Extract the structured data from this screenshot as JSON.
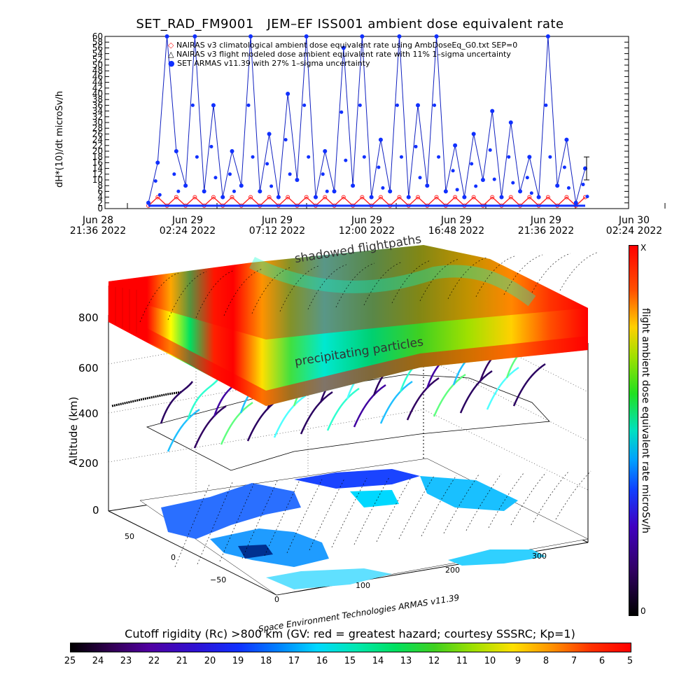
{
  "title": "SET_RAD_FM9001   JEM–EF ISS001 ambient dose equivalent rate",
  "top_chart": {
    "ylabel": "dH*(10)/dt microSv/h",
    "legend": [
      {
        "text": "NAIRAS v3 climatological ambient dose equivalent rate using AmbDoseEq_G0.txt SEP=0",
        "marker": "◇",
        "color": "#ff2a2a"
      },
      {
        "text": "NAIRAS v3 flight modeled dose ambient equivalent rate with 11% 1–sigma uncertainty",
        "marker": "△",
        "color": "#000000"
      },
      {
        "text": "SET ARMAS v11.39 with 27% 1–sigma uncertainty",
        "marker": "●",
        "color": "#1030ff"
      }
    ],
    "x_ticks": [
      {
        "line1": "Jun 28",
        "line2": "21:36 2022"
      },
      {
        "line1": "Jun 29",
        "line2": "02:24 2022"
      },
      {
        "line1": "Jun 29",
        "line2": "07:12 2022"
      },
      {
        "line1": "Jun 29",
        "line2": "12:00 2022"
      },
      {
        "line1": "Jun 29",
        "line2": "16:48 2022"
      },
      {
        "line1": "Jun 29",
        "line2": "21:36 2022"
      },
      {
        "line1": "Jun 30",
        "line2": "02:24 2022"
      }
    ],
    "y_ticks": [
      "0",
      "2",
      "4",
      "6",
      "8",
      "10",
      "12",
      "14",
      "16",
      "18",
      "20",
      "22",
      "24",
      "26",
      "28",
      "30",
      "32",
      "34",
      "36",
      "38",
      "40",
      "42",
      "44",
      "46",
      "48",
      "50",
      "52",
      "54",
      "56",
      "58",
      "60"
    ]
  },
  "chart_data": {
    "type": "line",
    "title": "SET_RAD_FM9001   JEM–EF ISS001 ambient dose equivalent rate",
    "xlabel": "",
    "ylabel": "dH*(10)/dt microSv/h",
    "x": [
      "Jun 29 00:00",
      "Jun 29 00:30",
      "Jun 29 01:00",
      "Jun 29 01:30",
      "Jun 29 02:00",
      "Jun 29 02:30",
      "Jun 29 03:00",
      "Jun 29 03:30",
      "Jun 29 04:00",
      "Jun 29 04:30",
      "Jun 29 05:00",
      "Jun 29 05:30",
      "Jun 29 06:00",
      "Jun 29 06:30",
      "Jun 29 07:00",
      "Jun 29 07:30",
      "Jun 29 08:00",
      "Jun 29 08:30",
      "Jun 29 09:00",
      "Jun 29 09:30",
      "Jun 29 10:00",
      "Jun 29 10:30",
      "Jun 29 11:00",
      "Jun 29 11:30",
      "Jun 29 12:00",
      "Jun 29 12:30",
      "Jun 29 13:00",
      "Jun 29 13:30",
      "Jun 29 14:00",
      "Jun 29 14:30",
      "Jun 29 15:00",
      "Jun 29 15:30",
      "Jun 29 16:00",
      "Jun 29 16:30",
      "Jun 29 17:00",
      "Jun 29 17:30",
      "Jun 29 18:00",
      "Jun 29 18:30",
      "Jun 29 19:00",
      "Jun 29 19:30",
      "Jun 29 20:00",
      "Jun 29 20:30",
      "Jun 29 21:00",
      "Jun 29 21:30",
      "Jun 29 22:00",
      "Jun 29 22:30",
      "Jun 29 23:00",
      "Jun 29 23:30"
    ],
    "series": [
      {
        "name": "SET ARMAS v11.39 with 27% 1–sigma uncertainty",
        "values": [
          2,
          16,
          60,
          20,
          8,
          60,
          6,
          36,
          4,
          20,
          8,
          60,
          6,
          26,
          4,
          40,
          10,
          60,
          4,
          20,
          6,
          56,
          8,
          60,
          4,
          24,
          6,
          60,
          4,
          36,
          8,
          60,
          6,
          22,
          4,
          26,
          10,
          34,
          4,
          30,
          6,
          18,
          4,
          60,
          8,
          24,
          2,
          14
        ]
      },
      {
        "name": "NAIRAS v3 climatological ambient dose equivalent rate using AmbDoseEq_G0.txt SEP=0",
        "values": [
          1,
          4,
          1,
          4,
          1,
          4,
          1,
          4,
          1,
          4,
          1,
          4,
          1,
          4,
          1,
          4,
          1,
          4,
          1,
          4,
          1,
          4,
          1,
          4,
          1,
          4,
          1,
          4,
          1,
          4,
          1,
          4,
          1,
          4,
          1,
          4,
          1,
          4,
          1,
          4,
          1,
          4,
          1,
          4,
          1,
          4,
          1,
          4
        ]
      }
    ],
    "ylim": [
      0,
      60
    ],
    "grid": false,
    "legend_position": "top-center"
  },
  "panel3d": {
    "ylabel": "Altitude (km)",
    "alt_ticks": [
      "800",
      "600",
      "400",
      "200",
      "0"
    ],
    "annot_top": "shadowed flightpaths",
    "annot_mid": "precipitating particles",
    "credit": "Space Environment Technologies ARMAS v11.39",
    "lat_ticks": [
      "50",
      "0",
      "−50"
    ],
    "lon_ticks": [
      "0",
      "100",
      "200",
      "300"
    ]
  },
  "right_colorbar": {
    "label": "flight ambient dose equivalent rate microSv/h",
    "top_label": "X",
    "bottom_label": "0"
  },
  "bottom_colorbar": {
    "caption": "Cutoff rigidity (Rc) >800 km (GV: red = greatest hazard; courtesy SSSRC; Kp=1)",
    "ticks": [
      "25",
      "24",
      "23",
      "22",
      "21",
      "20",
      "19",
      "18",
      "17",
      "16",
      "15",
      "14",
      "13",
      "12",
      "11",
      "10",
      "9",
      "8",
      "7",
      "6",
      "5"
    ]
  },
  "colors": {
    "armas": "#1030ff",
    "nairas": "#ff2a2a",
    "hazard": "#ff0000"
  }
}
